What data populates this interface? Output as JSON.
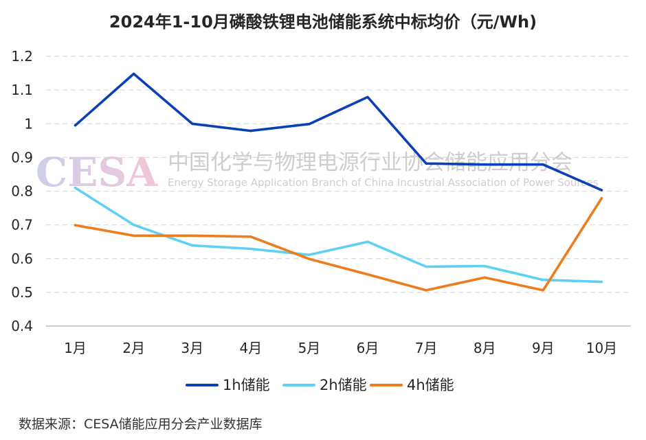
{
  "chart_data": {
    "type": "line",
    "title": "2024年1-10月磷酸铁锂电池储能系统中标均价（元/Wh)",
    "xlabel": "",
    "ylabel": "",
    "categories": [
      "1月",
      "2月",
      "3月",
      "4月",
      "5月",
      "6月",
      "7月",
      "8月",
      "9月",
      "10月"
    ],
    "ylim": [
      0.4,
      1.2
    ],
    "yticks": [
      "0.4",
      "0.5",
      "0.6",
      "0.7",
      "0.8",
      "0.9",
      "1",
      "1.1",
      "1.2"
    ],
    "grid": true,
    "legend_position": "bottom",
    "series": [
      {
        "name": "1h储能",
        "color": "#0a3fb5",
        "values": [
          0.995,
          1.148,
          1.0,
          0.979,
          0.999,
          1.079,
          0.882,
          0.879,
          0.879,
          0.803
        ]
      },
      {
        "name": "2h储能",
        "color": "#5fd0f5",
        "values": [
          0.81,
          0.7,
          0.639,
          0.629,
          0.611,
          0.65,
          0.576,
          0.578,
          0.537,
          0.531
        ]
      },
      {
        "name": "4h储能",
        "color": "#ec7c1c",
        "values": [
          0.699,
          0.668,
          0.668,
          0.665,
          0.599,
          0.553,
          0.506,
          0.544,
          0.506,
          0.779
        ]
      }
    ]
  },
  "watermark": {
    "logo": "CESA",
    "name_cn": "中国化学与物理电源行业协会储能应用分会",
    "name_en": "Energy Storage Application Branch of China Incustrial Association of Power Sources"
  },
  "source": "数据来源：CESA储能应用分会产业数据库"
}
